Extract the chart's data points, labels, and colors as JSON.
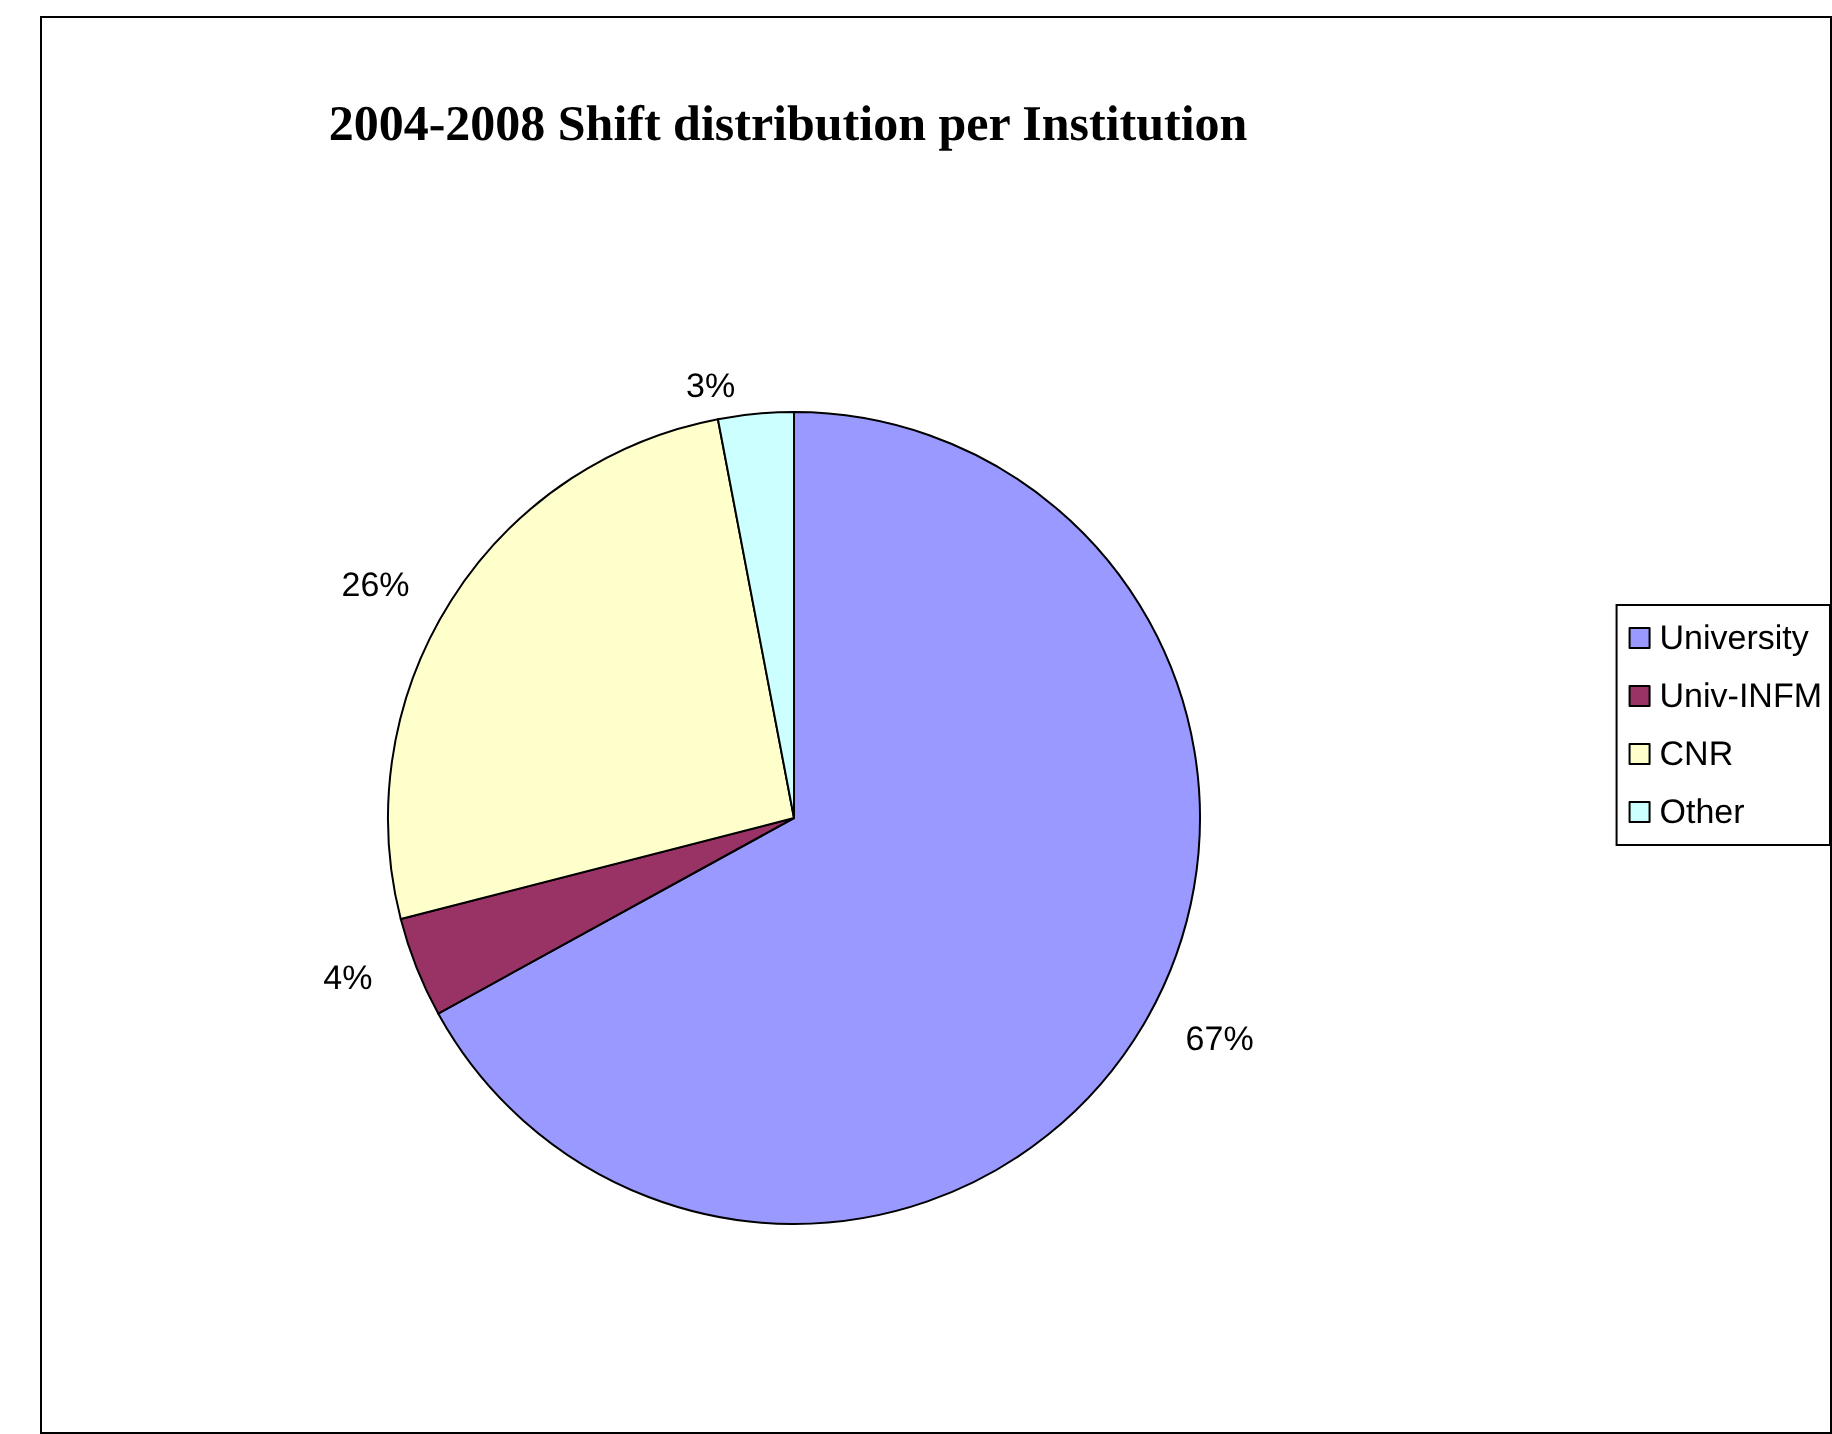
{
  "chart_data": {
    "type": "pie",
    "title": "2004-2008 Shift distribution per Institution",
    "categories": [
      "University",
      "Univ-INFM",
      "CNR",
      "Other"
    ],
    "values": [
      67,
      4,
      26,
      3
    ],
    "colors": [
      "#9999ff",
      "#993366",
      "#ffffcc",
      "#ccffff"
    ],
    "value_labels": [
      "67%",
      "4%",
      "26%",
      "3%"
    ],
    "legend": "right"
  }
}
